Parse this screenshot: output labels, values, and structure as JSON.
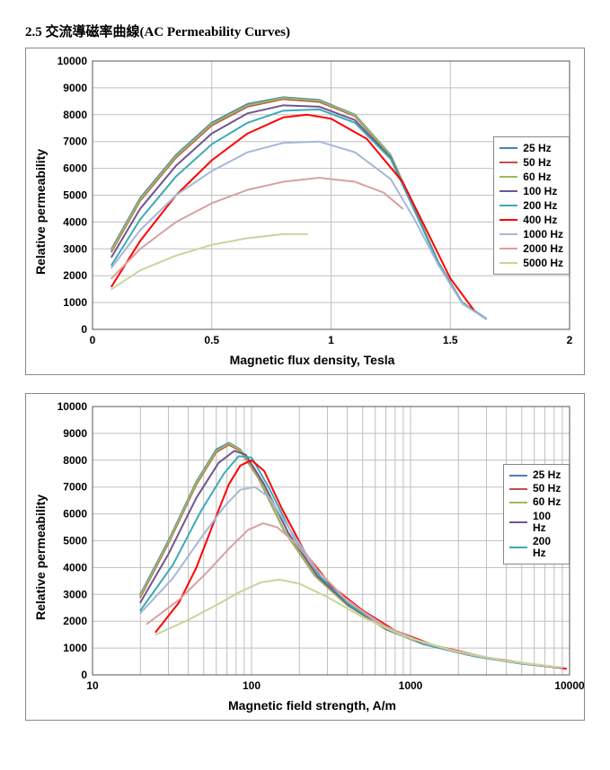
{
  "section_title": "2.5  交流導磁率曲線(AC Permeability Curves)",
  "colors": {
    "25": "#4a7ebb",
    "50": "#c0504d",
    "60": "#9bbb59",
    "100": "#6f568d",
    "200": "#3faab4",
    "400": "#ff0000",
    "1000": "#a6b8d8",
    "2000": "#d9a0a0",
    "5000": "#c4d79b"
  },
  "common": {
    "ylabel": "Relative permeability",
    "ylim": [
      0,
      10000
    ],
    "ytick_step": 1000,
    "background_color": "#ffffff",
    "grid_color": "#bfbfbf",
    "line_width": 2,
    "label_fontsize": 14,
    "tick_fontsize": 12,
    "font_family": "Arial"
  },
  "chart1": {
    "type": "line",
    "xlabel": "Magnetic flux density, Tesla",
    "xlim": [
      0,
      2
    ],
    "xtick_step": 0.5,
    "legend": {
      "position": "right-middle",
      "items": [
        "25 Hz",
        "50 Hz",
        "60 Hz",
        "100 Hz",
        "200 Hz",
        "400 Hz",
        "1000 Hz",
        "2000 Hz",
        "5000 Hz"
      ]
    },
    "series": {
      "25": [
        [
          0.08,
          3000
        ],
        [
          0.2,
          4900
        ],
        [
          0.35,
          6500
        ],
        [
          0.5,
          7700
        ],
        [
          0.65,
          8400
        ],
        [
          0.8,
          8650
        ],
        [
          0.95,
          8550
        ],
        [
          1.1,
          8000
        ],
        [
          1.25,
          6500
        ],
        [
          1.35,
          4500
        ],
        [
          1.45,
          2500
        ],
        [
          1.55,
          1000
        ],
        [
          1.65,
          400
        ]
      ],
      "50": [
        [
          0.08,
          2900
        ],
        [
          0.2,
          4800
        ],
        [
          0.35,
          6400
        ],
        [
          0.5,
          7600
        ],
        [
          0.65,
          8300
        ],
        [
          0.8,
          8580
        ],
        [
          0.95,
          8480
        ],
        [
          1.1,
          7950
        ],
        [
          1.25,
          6450
        ],
        [
          1.35,
          4480
        ],
        [
          1.45,
          2490
        ],
        [
          1.55,
          1000
        ],
        [
          1.65,
          400
        ]
      ],
      "60": [
        [
          0.08,
          2950
        ],
        [
          0.2,
          4850
        ],
        [
          0.35,
          6450
        ],
        [
          0.5,
          7650
        ],
        [
          0.65,
          8350
        ],
        [
          0.8,
          8620
        ],
        [
          0.95,
          8520
        ],
        [
          1.1,
          7980
        ],
        [
          1.25,
          6480
        ],
        [
          1.35,
          4490
        ],
        [
          1.45,
          2495
        ],
        [
          1.55,
          1000
        ],
        [
          1.65,
          400
        ]
      ],
      "100": [
        [
          0.08,
          2700
        ],
        [
          0.2,
          4500
        ],
        [
          0.35,
          6100
        ],
        [
          0.5,
          7300
        ],
        [
          0.65,
          8050
        ],
        [
          0.8,
          8350
        ],
        [
          0.95,
          8300
        ],
        [
          1.1,
          7800
        ],
        [
          1.25,
          6400
        ],
        [
          1.35,
          4450
        ],
        [
          1.45,
          2480
        ],
        [
          1.55,
          990
        ],
        [
          1.65,
          395
        ]
      ],
      "200": [
        [
          0.08,
          2400
        ],
        [
          0.2,
          4100
        ],
        [
          0.35,
          5700
        ],
        [
          0.5,
          6900
        ],
        [
          0.65,
          7700
        ],
        [
          0.8,
          8150
        ],
        [
          0.95,
          8200
        ],
        [
          1.1,
          7700
        ],
        [
          1.25,
          6350
        ],
        [
          1.35,
          4420
        ],
        [
          1.45,
          2470
        ],
        [
          1.55,
          985
        ],
        [
          1.65,
          393
        ]
      ],
      "400": [
        [
          0.08,
          1600
        ],
        [
          0.2,
          3300
        ],
        [
          0.35,
          5000
        ],
        [
          0.5,
          6300
        ],
        [
          0.65,
          7300
        ],
        [
          0.8,
          7900
        ],
        [
          0.9,
          8000
        ],
        [
          1.0,
          7850
        ],
        [
          1.15,
          7100
        ],
        [
          1.3,
          5500
        ],
        [
          1.4,
          3700
        ],
        [
          1.5,
          1900
        ],
        [
          1.6,
          700
        ]
      ],
      "1000": [
        [
          0.08,
          2300
        ],
        [
          0.2,
          3700
        ],
        [
          0.35,
          5000
        ],
        [
          0.5,
          5900
        ],
        [
          0.65,
          6600
        ],
        [
          0.8,
          6950
        ],
        [
          0.95,
          7000
        ],
        [
          1.1,
          6600
        ],
        [
          1.25,
          5600
        ],
        [
          1.35,
          4100
        ],
        [
          1.45,
          2400
        ],
        [
          1.55,
          960
        ],
        [
          1.65,
          380
        ]
      ],
      "2000": [
        [
          0.08,
          1900
        ],
        [
          0.2,
          3000
        ],
        [
          0.35,
          4000
        ],
        [
          0.5,
          4700
        ],
        [
          0.65,
          5200
        ],
        [
          0.8,
          5500
        ],
        [
          0.95,
          5650
        ],
        [
          1.1,
          5500
        ],
        [
          1.22,
          5100
        ],
        [
          1.3,
          4500
        ]
      ],
      "5000": [
        [
          0.08,
          1500
        ],
        [
          0.2,
          2200
        ],
        [
          0.35,
          2750
        ],
        [
          0.5,
          3150
        ],
        [
          0.65,
          3400
        ],
        [
          0.8,
          3550
        ],
        [
          0.9,
          3550
        ]
      ]
    }
  },
  "chart2": {
    "type": "line",
    "xlabel": "Magnetic field strength, A/m",
    "xscale": "log",
    "xlim": [
      10,
      10000
    ],
    "xticks": [
      10,
      100,
      1000,
      10000
    ],
    "legend": {
      "position": "right-middle",
      "narrow": true,
      "items": [
        "25 Hz",
        "50 Hz",
        "60 Hz",
        "100 Hz",
        "200 Hz"
      ]
    },
    "series": {
      "25": [
        [
          20,
          3000
        ],
        [
          30,
          5000
        ],
        [
          45,
          7200
        ],
        [
          60,
          8400
        ],
        [
          72,
          8650
        ],
        [
          85,
          8400
        ],
        [
          110,
          7400
        ],
        [
          160,
          5400
        ],
        [
          250,
          3700
        ],
        [
          400,
          2600
        ],
        [
          700,
          1700
        ],
        [
          1200,
          1150
        ],
        [
          2500,
          700
        ],
        [
          5000,
          420
        ],
        [
          9000,
          260
        ]
      ],
      "50": [
        [
          20,
          2900
        ],
        [
          30,
          4900
        ],
        [
          45,
          7100
        ],
        [
          60,
          8300
        ],
        [
          72,
          8580
        ],
        [
          85,
          8350
        ],
        [
          110,
          7350
        ],
        [
          160,
          5380
        ],
        [
          250,
          3690
        ],
        [
          400,
          2595
        ],
        [
          700,
          1695
        ],
        [
          1200,
          1148
        ],
        [
          2500,
          698
        ],
        [
          5000,
          419
        ],
        [
          9000,
          259
        ]
      ],
      "60": [
        [
          20,
          2950
        ],
        [
          30,
          4950
        ],
        [
          45,
          7150
        ],
        [
          60,
          8350
        ],
        [
          72,
          8620
        ],
        [
          85,
          8380
        ],
        [
          110,
          7380
        ],
        [
          160,
          5390
        ],
        [
          250,
          3695
        ],
        [
          400,
          2598
        ],
        [
          700,
          1698
        ],
        [
          1200,
          1149
        ],
        [
          2500,
          699
        ],
        [
          5000,
          419
        ],
        [
          9000,
          259
        ]
      ],
      "100": [
        [
          20,
          2700
        ],
        [
          30,
          4500
        ],
        [
          45,
          6600
        ],
        [
          62,
          7900
        ],
        [
          78,
          8350
        ],
        [
          92,
          8200
        ],
        [
          120,
          7100
        ],
        [
          170,
          5300
        ],
        [
          260,
          3680
        ],
        [
          410,
          2590
        ],
        [
          710,
          1693
        ],
        [
          1210,
          1147
        ],
        [
          2510,
          697
        ],
        [
          5010,
          418
        ],
        [
          9010,
          258
        ]
      ],
      "200": [
        [
          20,
          2400
        ],
        [
          32,
          4100
        ],
        [
          48,
          6100
        ],
        [
          67,
          7500
        ],
        [
          83,
          8150
        ],
        [
          100,
          8100
        ],
        [
          128,
          7000
        ],
        [
          180,
          5250
        ],
        [
          270,
          3670
        ],
        [
          420,
          2585
        ],
        [
          720,
          1690
        ],
        [
          1220,
          1145
        ],
        [
          2520,
          696
        ],
        [
          5020,
          417
        ],
        [
          9020,
          257
        ]
      ],
      "400": [
        [
          25,
          1600
        ],
        [
          35,
          2700
        ],
        [
          45,
          4000
        ],
        [
          58,
          5700
        ],
        [
          72,
          7100
        ],
        [
          85,
          7800
        ],
        [
          100,
          8000
        ],
        [
          120,
          7600
        ],
        [
          155,
          6200
        ],
        [
          220,
          4500
        ],
        [
          320,
          3300
        ],
        [
          500,
          2400
        ],
        [
          800,
          1650
        ],
        [
          1400,
          1100
        ],
        [
          3000,
          650
        ],
        [
          6000,
          380
        ],
        [
          9500,
          230
        ]
      ],
      "1000": [
        [
          20,
          2300
        ],
        [
          32,
          3600
        ],
        [
          48,
          5100
        ],
        [
          68,
          6300
        ],
        [
          85,
          6900
        ],
        [
          105,
          7000
        ],
        [
          130,
          6600
        ],
        [
          175,
          5400
        ],
        [
          260,
          3900
        ],
        [
          400,
          2750
        ],
        [
          700,
          1800
        ],
        [
          1200,
          1200
        ],
        [
          2500,
          720
        ],
        [
          5000,
          430
        ],
        [
          9000,
          265
        ]
      ],
      "2000": [
        [
          22,
          1900
        ],
        [
          35,
          2800
        ],
        [
          52,
          3800
        ],
        [
          72,
          4700
        ],
        [
          95,
          5400
        ],
        [
          118,
          5650
        ],
        [
          145,
          5500
        ],
        [
          190,
          4900
        ],
        [
          260,
          3900
        ],
        [
          380,
          2900
        ],
        [
          600,
          2000
        ],
        [
          1000,
          1350
        ],
        [
          2000,
          850
        ],
        [
          4000,
          520
        ],
        [
          8000,
          300
        ]
      ],
      "5000": [
        [
          25,
          1500
        ],
        [
          40,
          2050
        ],
        [
          60,
          2600
        ],
        [
          85,
          3100
        ],
        [
          115,
          3450
        ],
        [
          150,
          3550
        ],
        [
          200,
          3400
        ],
        [
          300,
          2900
        ],
        [
          500,
          2150
        ],
        [
          900,
          1450
        ],
        [
          1800,
          920
        ],
        [
          3800,
          540
        ],
        [
          8500,
          290
        ]
      ]
    }
  }
}
